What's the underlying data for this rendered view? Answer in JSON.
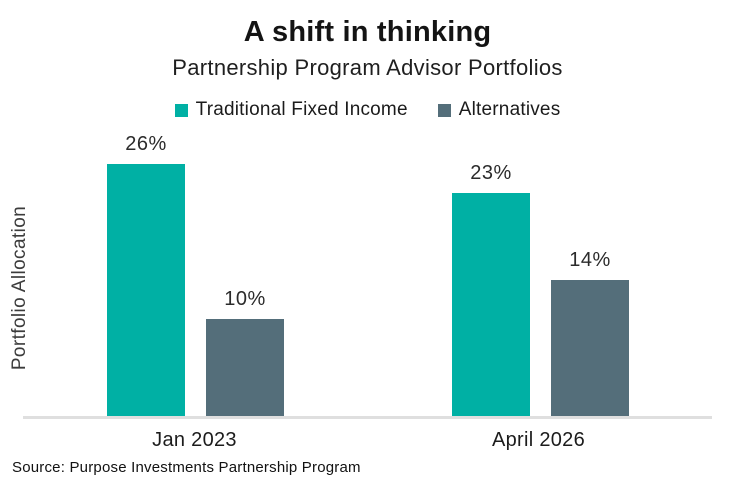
{
  "title": "A shift in thinking",
  "subtitle": "Partnership Program Advisor Portfolios",
  "ylabel": "Portfolio Allocation",
  "source": "Source: Purpose Investments Partnership Program",
  "colors": {
    "teal": "#00b0a4",
    "slate": "#546e7a",
    "axis_line": "#dfdfdf"
  },
  "legend": [
    {
      "label": "Traditional Fixed Income",
      "color": "#00b0a4"
    },
    {
      "label": "Alternatives",
      "color": "#546e7a"
    }
  ],
  "chart_data": {
    "type": "bar",
    "title": "A shift in thinking",
    "subtitle": "Partnership Program Advisor Portfolios",
    "categories": [
      "Jan 2023",
      "April 2026"
    ],
    "series": [
      {
        "name": "Traditional Fixed Income",
        "color": "#00b0a4",
        "values": [
          26,
          23
        ],
        "value_labels": [
          "26%",
          "23%"
        ]
      },
      {
        "name": "Alternatives",
        "color": "#546e7a",
        "values": [
          10,
          14
        ],
        "value_labels": [
          "10%",
          "14%"
        ]
      }
    ],
    "value_suffix": "%",
    "xlabel": "",
    "ylabel": "Portfolio Allocation",
    "ylim": [
      0,
      26
    ],
    "grid": false,
    "legend_position": "top",
    "data_labels": true
  }
}
